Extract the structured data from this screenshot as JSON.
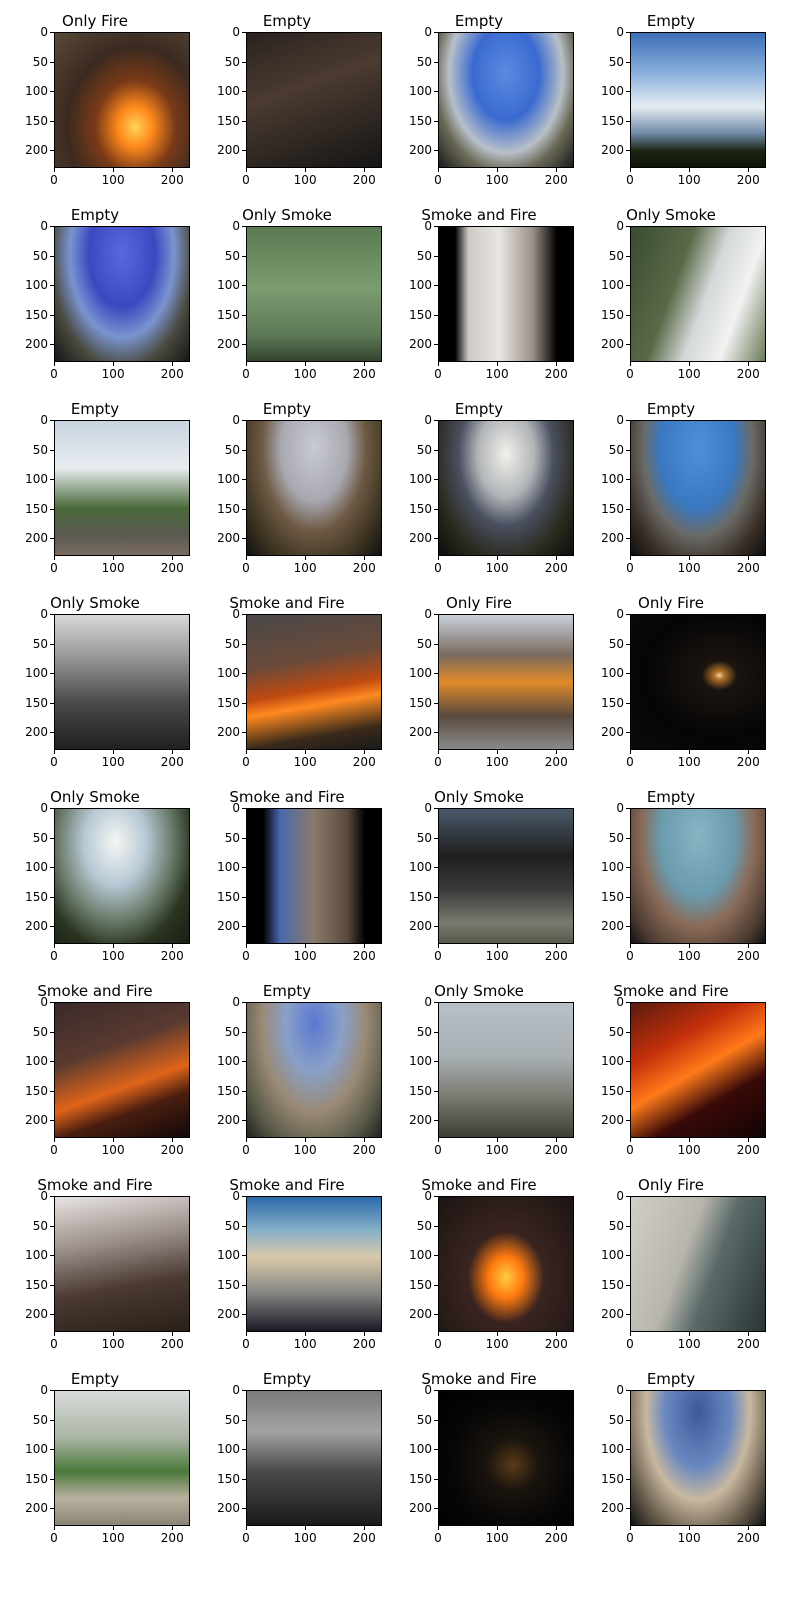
{
  "axis": {
    "y_ticks": [
      "0",
      "50",
      "100",
      "150",
      "200"
    ],
    "x_ticks": [
      "0",
      "100",
      "200"
    ]
  },
  "panels": [
    {
      "title": "Only Fire",
      "scene": "sc-fire"
    },
    {
      "title": "Empty",
      "scene": "sc-dark-room"
    },
    {
      "title": "Empty",
      "scene": "sc-fisheye-sky"
    },
    {
      "title": "Empty",
      "scene": "sc-clouds"
    },
    {
      "title": "Empty",
      "scene": "sc-fisheye-blue"
    },
    {
      "title": "Only Smoke",
      "scene": "sc-green-room"
    },
    {
      "title": "Smoke and Fire",
      "scene": "sc-smoke-fire"
    },
    {
      "title": "Only Smoke",
      "scene": "sc-smoke-field"
    },
    {
      "title": "Empty",
      "scene": "sc-park"
    },
    {
      "title": "Empty",
      "scene": "sc-hill-dusk"
    },
    {
      "title": "Empty",
      "scene": "sc-hill-cloud"
    },
    {
      "title": "Empty",
      "scene": "sc-hill-blue"
    },
    {
      "title": "Only Smoke",
      "scene": "sc-mist-smoke"
    },
    {
      "title": "Smoke and Fire",
      "scene": "sc-wildfire"
    },
    {
      "title": "Only Fire",
      "scene": "sc-indoor-fire"
    },
    {
      "title": "Only Fire",
      "scene": "sc-night-fire"
    },
    {
      "title": "Only Smoke",
      "scene": "sc-hill-haze"
    },
    {
      "title": "Smoke and Fire",
      "scene": "sc-test-fire"
    },
    {
      "title": "Only Smoke",
      "scene": "sc-black-smoke"
    },
    {
      "title": "Empty",
      "scene": "sc-fisheye-teal"
    },
    {
      "title": "Smoke and Fire",
      "scene": "sc-ridge-fire"
    },
    {
      "title": "Empty",
      "scene": "sc-valley"
    },
    {
      "title": "Only Smoke",
      "scene": "sc-tower-fog"
    },
    {
      "title": "Smoke and Fire",
      "scene": "sc-ridge-fire2"
    },
    {
      "title": "Smoke and Fire",
      "scene": "sc-ash-fire"
    },
    {
      "title": "Smoke and Fire",
      "scene": "sc-yard"
    },
    {
      "title": "Smoke and Fire",
      "scene": "sc-ground-fire"
    },
    {
      "title": "Only Fire",
      "scene": "sc-corridor"
    },
    {
      "title": "Empty",
      "scene": "sc-path"
    },
    {
      "title": "Empty",
      "scene": "sc-bw-tower"
    },
    {
      "title": "Smoke and Fire",
      "scene": "sc-night-city"
    },
    {
      "title": "Empty",
      "scene": "sc-fisheye-peak"
    }
  ]
}
